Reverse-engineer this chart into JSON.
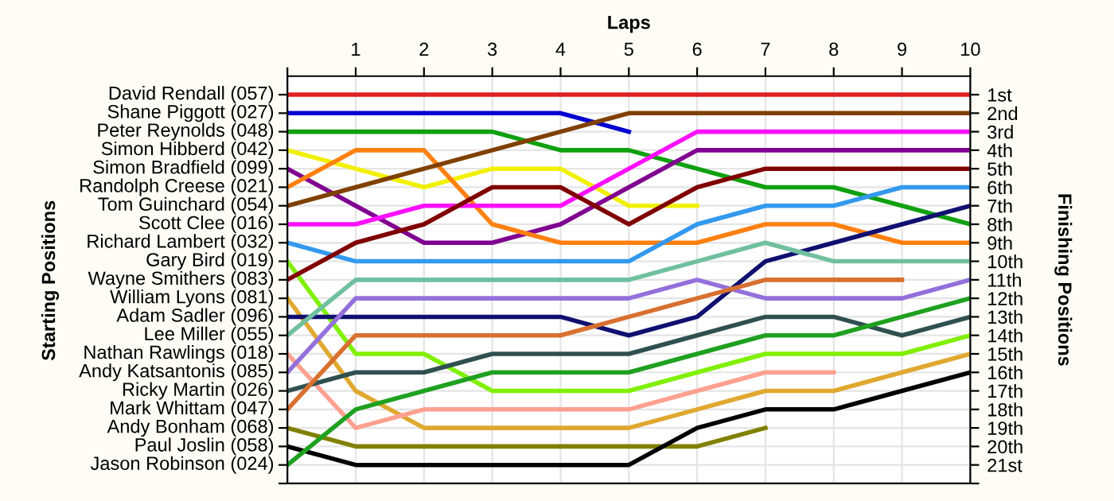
{
  "chart_data": {
    "type": "line",
    "xlabel": "Laps",
    "ylabel": "Finishing Positions",
    "x": [
      0,
      1,
      2,
      3,
      4,
      5,
      6,
      7,
      8,
      9,
      10
    ],
    "xlim": [
      0,
      10
    ],
    "xticks": [
      {
        "value": 0,
        "label": null
      },
      1,
      2,
      3,
      4,
      5,
      6,
      7,
      8,
      9,
      10
    ],
    "ylim": [
      22,
      0
    ],
    "yticks": [
      {
        "value": 1,
        "label": "1st"
      },
      {
        "value": 2,
        "label": "2nd"
      },
      {
        "value": 3,
        "label": "3rd"
      },
      {
        "value": 4,
        "label": "4th"
      },
      {
        "value": 5,
        "label": "5th"
      },
      {
        "value": 6,
        "label": "6th"
      },
      {
        "value": 7,
        "label": "7th"
      },
      {
        "value": 8,
        "label": "8th"
      },
      {
        "value": 9,
        "label": "9th"
      },
      {
        "value": 10,
        "label": "10th"
      },
      {
        "value": 11,
        "label": "11th"
      },
      {
        "value": 12,
        "label": "12th"
      },
      {
        "value": 13,
        "label": "13th"
      },
      {
        "value": 14,
        "label": "14th"
      },
      {
        "value": 15,
        "label": "15th"
      },
      {
        "value": 16,
        "label": "16th"
      },
      {
        "value": 17,
        "label": "17th"
      },
      {
        "value": 18,
        "label": "18th"
      },
      {
        "value": 19,
        "label": "19th"
      },
      {
        "value": 20,
        "label": "20th"
      },
      {
        "value": 21,
        "label": "21st"
      },
      {
        "value": 22,
        "label": null
      }
    ],
    "annotations": [
      "Starting Positions",
      "David Rendall (057)",
      "Shane Piggott (027)",
      "Peter Reynolds (048)",
      "Simon Hibberd (042)",
      "Simon Bradfield (099)",
      "Randolph Creese (021)",
      "Tom Guinchard (054)",
      "Scott Clee (016)",
      "Richard Lambert (032)",
      "Gary Bird (019)",
      "Wayne Smithers (083)",
      "William Lyons (081)",
      "Adam Sadler (096)",
      "Lee Miller (055)",
      "Nathan Rawlings (018)",
      "Andy Katsantonis (085)",
      "Ricky Martin (026)",
      "Mark Whittam (047)",
      "Andy Bonham (068)",
      "Paul Joslin (058)",
      "Jason Robinson (024)"
    ],
    "grid": true,
    "legend": false,
    "marker": "none",
    "line_style": "solid",
    "series": [
      {
        "color": "#e02020",
        "values": [
          1,
          1,
          1,
          1,
          1,
          1,
          1,
          1,
          1,
          1,
          1
        ]
      },
      {
        "color": "#0000d0",
        "values": [
          2,
          2,
          2,
          2,
          2,
          3,
          null,
          null,
          null,
          null,
          null
        ]
      },
      {
        "color": "#10a010",
        "values": [
          3,
          3,
          3,
          3,
          4,
          4,
          5,
          6,
          6,
          7,
          8
        ]
      },
      {
        "color": "#f0f000",
        "values": [
          4,
          5,
          6,
          5,
          5,
          7,
          7,
          null,
          null,
          null,
          null
        ]
      },
      {
        "color": "#800090",
        "values": [
          5,
          7,
          9,
          9,
          8,
          6,
          4,
          4,
          4,
          4,
          4
        ]
      },
      {
        "color": "#ff8010",
        "values": [
          6,
          4,
          4,
          8,
          9,
          9,
          9,
          8,
          8,
          9,
          9
        ]
      },
      {
        "color": "#804000",
        "values": [
          7,
          6,
          5,
          4,
          3,
          2,
          2,
          2,
          2,
          2,
          2
        ]
      },
      {
        "color": "#ff10ff",
        "values": [
          8,
          8,
          7,
          7,
          7,
          5,
          3,
          3,
          3,
          3,
          3
        ]
      },
      {
        "color": "#3399ee",
        "values": [
          9,
          10,
          10,
          10,
          10,
          10,
          8,
          7,
          7,
          6,
          6
        ]
      },
      {
        "color": "#80f000",
        "values": [
          10,
          15,
          15,
          17,
          17,
          17,
          16,
          15,
          15,
          15,
          14
        ]
      },
      {
        "color": "#800000",
        "values": [
          11,
          9,
          8,
          6,
          6,
          8,
          6,
          5,
          5,
          5,
          5
        ]
      },
      {
        "color": "#e0a830",
        "values": [
          12,
          17,
          19,
          19,
          19,
          19,
          18,
          17,
          17,
          16,
          15
        ]
      },
      {
        "color": "#101070",
        "values": [
          13,
          13,
          13,
          13,
          13,
          14,
          13,
          10,
          9,
          8,
          7
        ]
      },
      {
        "color": "#70c0a0",
        "values": [
          14,
          11,
          11,
          11,
          11,
          11,
          10,
          9,
          10,
          10,
          10
        ]
      },
      {
        "color": "#ffa090",
        "values": [
          15,
          19,
          18,
          18,
          18,
          18,
          17,
          16,
          16,
          null,
          null
        ]
      },
      {
        "color": "#9370db",
        "values": [
          16,
          12,
          12,
          12,
          12,
          12,
          11,
          12,
          12,
          12,
          11
        ]
      },
      {
        "color": "#305050",
        "values": [
          17,
          16,
          16,
          15,
          15,
          15,
          14,
          13,
          13,
          14,
          13
        ]
      },
      {
        "color": "#d87030",
        "values": [
          18,
          14,
          14,
          14,
          14,
          13,
          12,
          11,
          11,
          11,
          null
        ]
      },
      {
        "color": "#808000",
        "values": [
          19,
          20,
          20,
          20,
          20,
          20,
          20,
          19,
          null,
          null,
          null
        ]
      },
      {
        "color": "#000000",
        "values": [
          20,
          21,
          21,
          21,
          21,
          21,
          19,
          18,
          18,
          17,
          16
        ]
      },
      {
        "color": "#20a020",
        "values": [
          21,
          18,
          17,
          16,
          16,
          16,
          15,
          14,
          14,
          13,
          12
        ]
      }
    ]
  }
}
